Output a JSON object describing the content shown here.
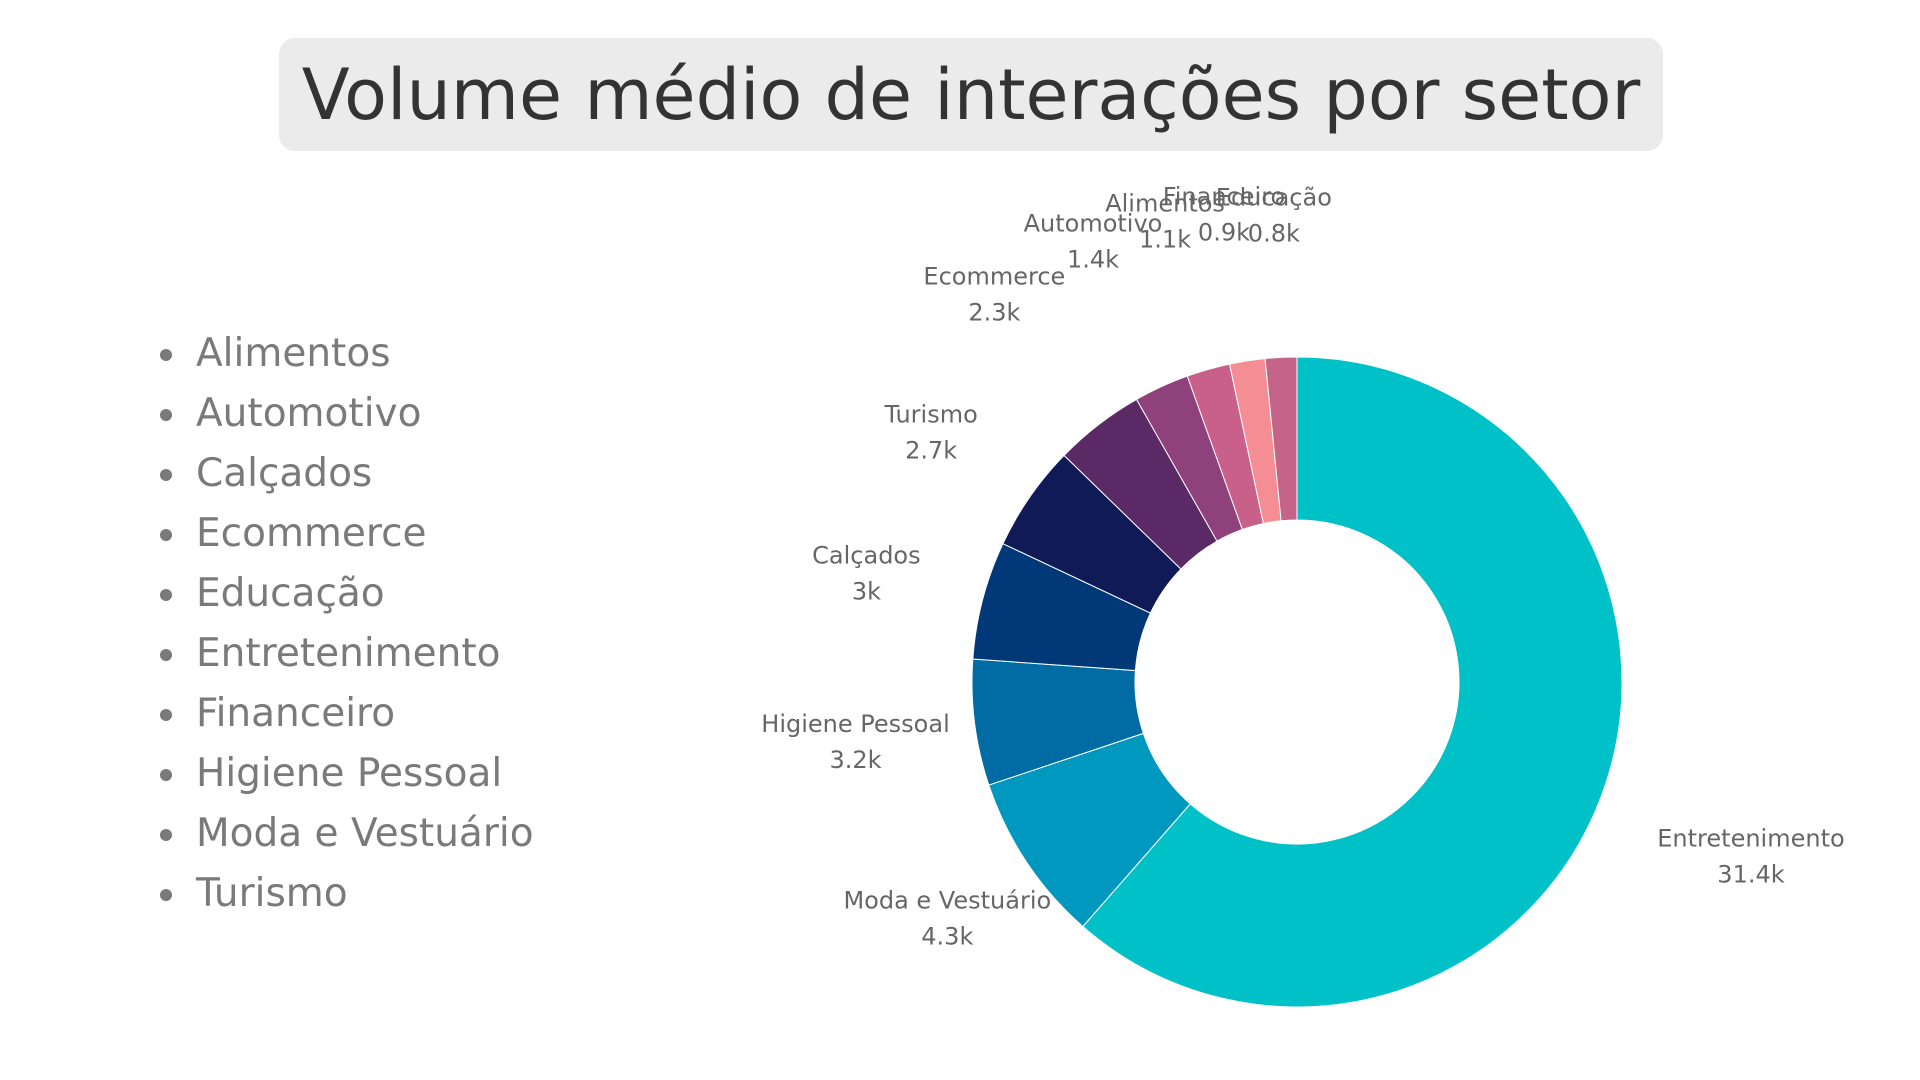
{
  "title": "Volume médio de interações por setor",
  "legend_list": [
    "Alimentos",
    "Automotivo",
    "Calçados",
    "Ecommerce",
    "Educação",
    "Entretenimento",
    "Financeiro",
    "Higiene Pessoal",
    "Moda e Vestuário",
    "Turismo"
  ],
  "chart_data": {
    "type": "pie",
    "style": "donut",
    "title": "Volume médio de interações por setor",
    "start_angle": "top, clockwise",
    "slices": [
      {
        "label": "Entretenimento",
        "value": 31.4,
        "display": "31.4k",
        "color": "#00c0c8"
      },
      {
        "label": "Moda e Vestuário",
        "value": 4.3,
        "display": "4.3k",
        "color": "#0098bf"
      },
      {
        "label": "Higiene Pessoal",
        "value": 3.2,
        "display": "3.2k",
        "color": "#006ca3"
      },
      {
        "label": "Calçados",
        "value": 3.0,
        "display": "3k",
        "color": "#003878"
      },
      {
        "label": "Turismo",
        "value": 2.7,
        "display": "2.7k",
        "color": "#0f1a56"
      },
      {
        "label": "Ecommerce",
        "value": 2.3,
        "display": "2.3k",
        "color": "#5b2966"
      },
      {
        "label": "Automotivo",
        "value": 1.4,
        "display": "1.4k",
        "color": "#8e417b"
      },
      {
        "label": "Alimentos",
        "value": 1.1,
        "display": "1.1k",
        "color": "#c9608a"
      },
      {
        "label": "Financeiro",
        "value": 0.9,
        "display": "0.9k",
        "color": "#f58e94"
      },
      {
        "label": "Educação",
        "value": 0.8,
        "display": "0.8k",
        "color": "#c36488"
      }
    ]
  },
  "colors": {
    "title_background": "#ebebeb",
    "title_text": "#333333",
    "list_text": "#7a7a7a",
    "label_text": "#666666"
  }
}
